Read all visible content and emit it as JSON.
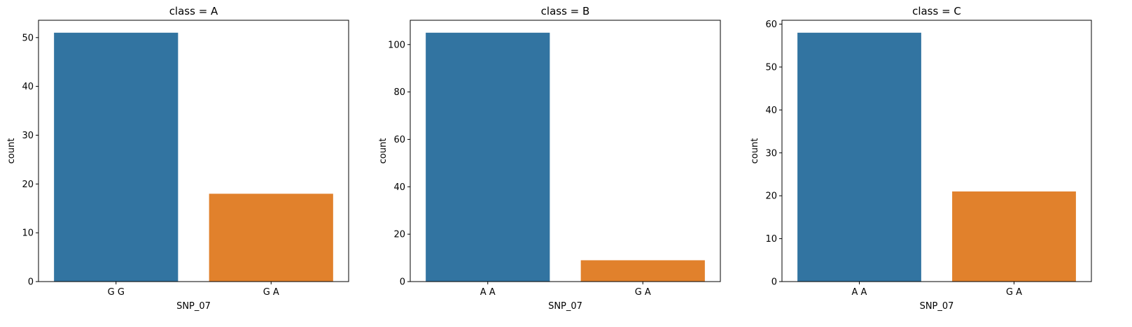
{
  "chart_data": [
    {
      "type": "bar",
      "title": "class = A",
      "xlabel": "SNP_07",
      "ylabel": "count",
      "categories": [
        "G G",
        "G A"
      ],
      "values": [
        51,
        18
      ],
      "colors": [
        "#3274a1",
        "#e1812c"
      ],
      "ylim": [
        0,
        53.55
      ],
      "yticks": [
        0,
        10,
        20,
        30,
        40,
        50
      ],
      "grid": false,
      "legend": "none"
    },
    {
      "type": "bar",
      "title": "class = B",
      "xlabel": "SNP_07",
      "ylabel": "count",
      "categories": [
        "A A",
        "G A"
      ],
      "values": [
        105,
        9
      ],
      "colors": [
        "#3274a1",
        "#e1812c"
      ],
      "ylim": [
        0,
        110.25
      ],
      "yticks": [
        0,
        20,
        40,
        60,
        80,
        100
      ],
      "grid": false,
      "legend": "none"
    },
    {
      "type": "bar",
      "title": "class = C",
      "xlabel": "SNP_07",
      "ylabel": "count",
      "categories": [
        "A A",
        "G A"
      ],
      "values": [
        58,
        21
      ],
      "colors": [
        "#3274a1",
        "#e1812c"
      ],
      "ylim": [
        0,
        60.9
      ],
      "yticks": [
        0,
        10,
        20,
        30,
        40,
        50,
        60
      ],
      "grid": false,
      "legend": "none"
    }
  ]
}
